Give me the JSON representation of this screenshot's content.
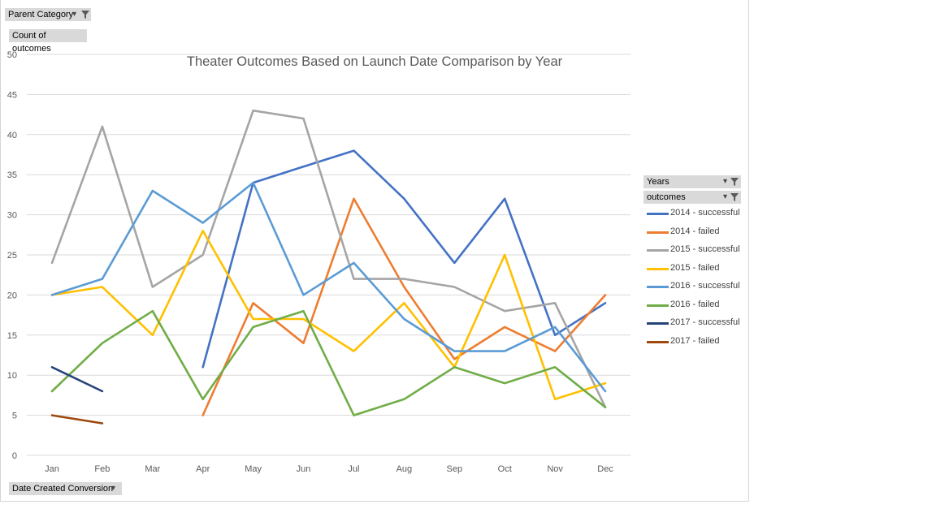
{
  "pivot": {
    "filter_label": "Parent Category",
    "value_label": "Count of outcomes",
    "axis_field_label": "Date Created Conversion",
    "legend_fields": [
      "Years",
      "outcomes"
    ]
  },
  "legend": {
    "items": [
      {
        "label": "2014 - successful",
        "color": "#4472c4"
      },
      {
        "label": "2014 - failed",
        "color": "#ed7d31"
      },
      {
        "label": "2015 - successful",
        "color": "#a5a5a5"
      },
      {
        "label": "2015 - failed",
        "color": "#ffc000"
      },
      {
        "label": "2016 - successful",
        "color": "#5b9bd5"
      },
      {
        "label": "2016 - failed",
        "color": "#70ad47"
      },
      {
        "label": "2017 - successful",
        "color": "#264478"
      },
      {
        "label": "2017 - failed",
        "color": "#9e480e"
      }
    ]
  },
  "chart_data": {
    "type": "line",
    "title": "Theater Outcomes Based on Launch Date Comparison by Year",
    "xlabel": "",
    "ylabel": "",
    "ylim": [
      0,
      50
    ],
    "yticks": [
      0,
      5,
      10,
      15,
      20,
      25,
      30,
      35,
      40,
      45,
      50
    ],
    "grid": true,
    "legend_position": "right",
    "categories": [
      "Jan",
      "Feb",
      "Mar",
      "Apr",
      "May",
      "Jun",
      "Jul",
      "Aug",
      "Sep",
      "Oct",
      "Nov",
      "Dec"
    ],
    "series": [
      {
        "name": "2014 - successful",
        "color": "#4472c4",
        "values": [
          null,
          null,
          null,
          11,
          34,
          36,
          38,
          32,
          24,
          32,
          15,
          19
        ]
      },
      {
        "name": "2014 - failed",
        "color": "#ed7d31",
        "values": [
          null,
          null,
          null,
          5,
          19,
          14,
          32,
          21,
          12,
          16,
          13,
          20
        ]
      },
      {
        "name": "2015 - successful",
        "color": "#a5a5a5",
        "values": [
          24,
          41,
          21,
          25,
          43,
          42,
          22,
          22,
          21,
          18,
          19,
          6
        ]
      },
      {
        "name": "2015 - failed",
        "color": "#ffc000",
        "values": [
          20,
          21,
          15,
          28,
          17,
          17,
          13,
          19,
          11,
          25,
          7,
          9
        ]
      },
      {
        "name": "2016 - successful",
        "color": "#5b9bd5",
        "values": [
          20,
          22,
          33,
          29,
          34,
          20,
          24,
          17,
          13,
          13,
          16,
          8
        ]
      },
      {
        "name": "2016 - failed",
        "color": "#70ad47",
        "values": [
          8,
          14,
          18,
          7,
          16,
          18,
          5,
          7,
          11,
          9,
          11,
          6
        ]
      },
      {
        "name": "2017 - successful",
        "color": "#264478",
        "values": [
          11,
          8,
          null,
          null,
          null,
          null,
          null,
          null,
          null,
          null,
          null,
          null
        ]
      },
      {
        "name": "2017 - failed",
        "color": "#9e480e",
        "values": [
          5,
          4,
          null,
          null,
          null,
          null,
          null,
          null,
          null,
          null,
          null,
          null
        ]
      }
    ]
  }
}
